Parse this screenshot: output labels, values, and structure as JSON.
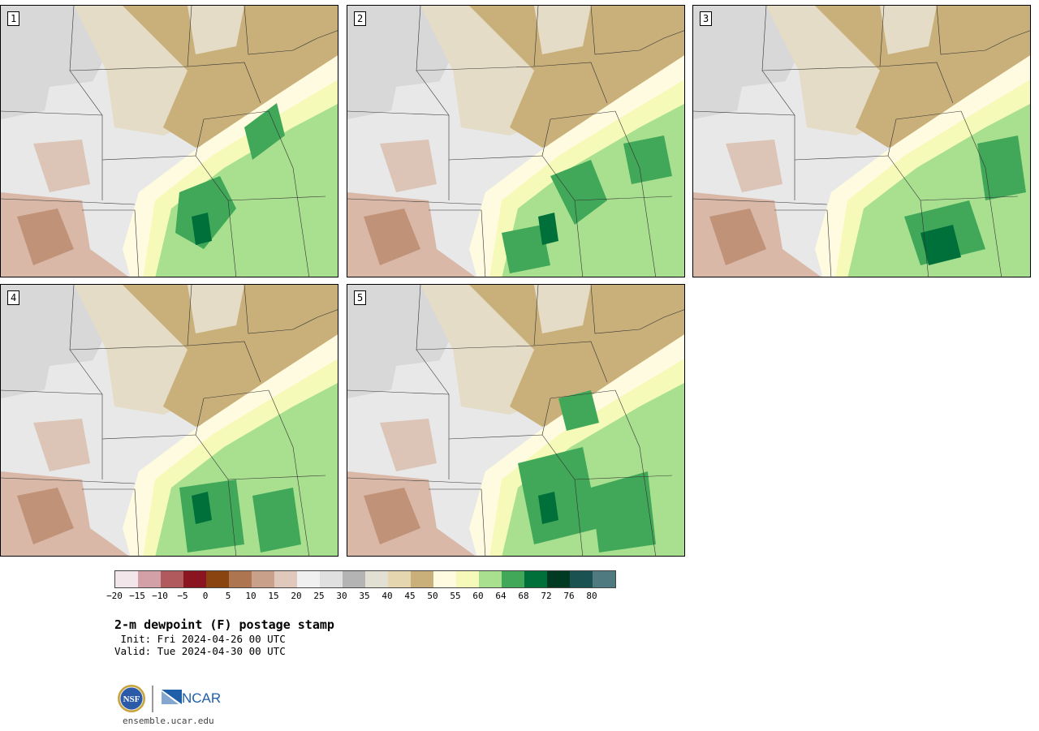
{
  "panels": [
    {
      "label": "1"
    },
    {
      "label": "2"
    },
    {
      "label": "3"
    },
    {
      "label": "4"
    },
    {
      "label": "5"
    }
  ],
  "colorbar": {
    "colors": [
      "#f2e6ea",
      "#d4a0a8",
      "#b05a5e",
      "#8a1420",
      "#8a4410",
      "#ad7650",
      "#c9a08a",
      "#e0c8bc",
      "#f0f0f0",
      "#e0e0e0",
      "#b4b4b4",
      "#e2e0d2",
      "#e6d6b0",
      "#c9b07a",
      "#fffbe0",
      "#f5fab8",
      "#a8e090",
      "#40a858",
      "#00703a",
      "#003a22",
      "#1a5252",
      "#4e7a80"
    ],
    "tick_labels": [
      "−20",
      "−15",
      "−10",
      "−5",
      "0",
      "5",
      "10",
      "15",
      "20",
      "25",
      "30",
      "35",
      "40",
      "45",
      "50",
      "55",
      "60",
      "64",
      "68",
      "72",
      "76",
      "80"
    ]
  },
  "title": "2-m dewpoint (F) postage stamp",
  "init": " Init: Fri 2024-04-26 00 UTC",
  "valid": "Valid: Tue 2024-04-30 00 UTC",
  "logo": {
    "nsf": "NSF",
    "ncar": "NCAR"
  },
  "website": "ensemble.ucar.edu"
}
